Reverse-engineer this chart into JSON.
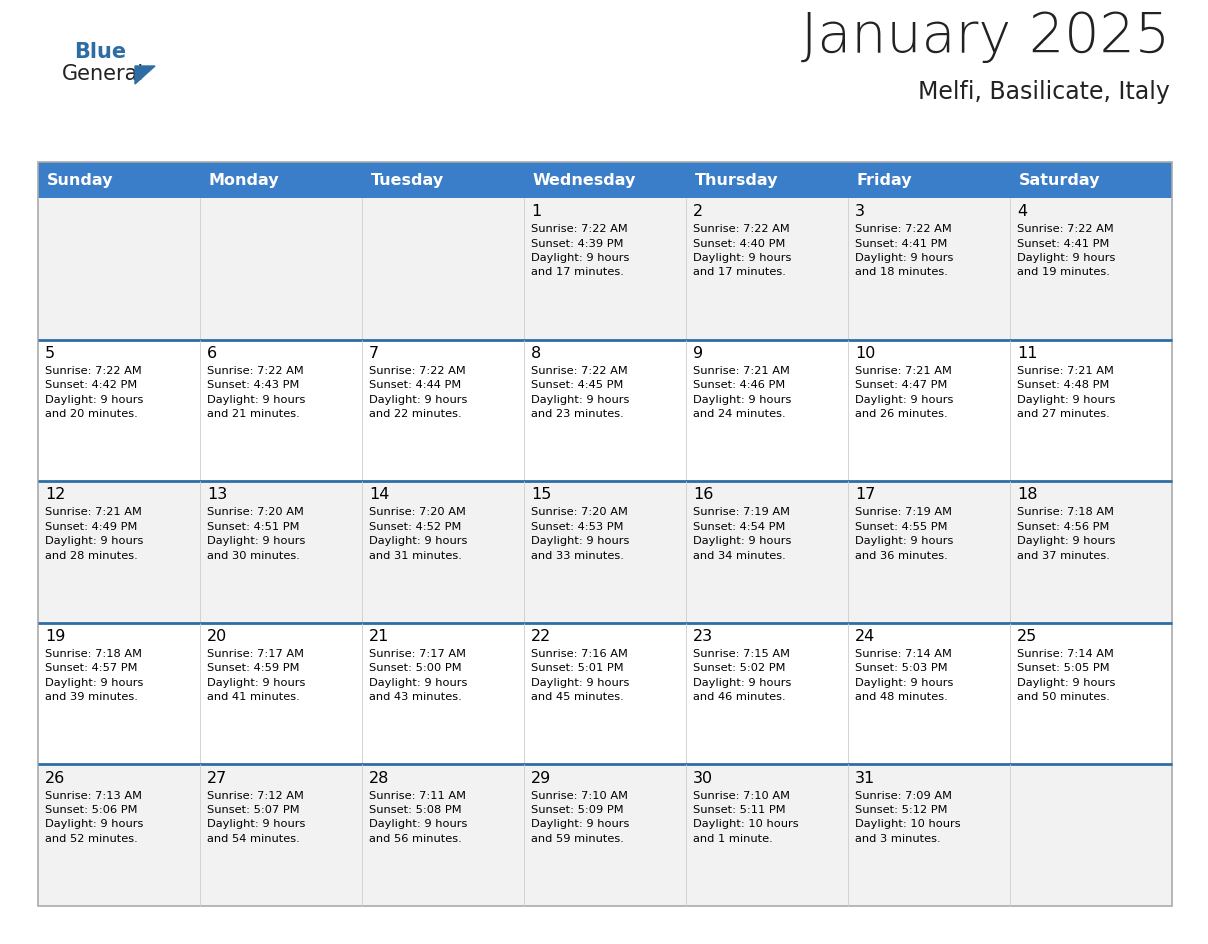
{
  "title": "January 2025",
  "subtitle": "Melfi, Basilicate, Italy",
  "days_of_week": [
    "Sunday",
    "Monday",
    "Tuesday",
    "Wednesday",
    "Thursday",
    "Friday",
    "Saturday"
  ],
  "header_bg": "#3A7DC9",
  "header_text": "#FFFFFF",
  "cell_bg_odd": "#F2F2F2",
  "cell_bg_even": "#FFFFFF",
  "divider_color": "#2E6DA4",
  "text_color": "#000000",
  "title_color": "#222222",
  "logo_general_color": "#222222",
  "logo_blue_color": "#2E6DA4",
  "logo_triangle_color": "#2E6DA4",
  "calendar_data": [
    [
      {
        "day": null,
        "info": null
      },
      {
        "day": null,
        "info": null
      },
      {
        "day": null,
        "info": null
      },
      {
        "day": 1,
        "info": "Sunrise: 7:22 AM\nSunset: 4:39 PM\nDaylight: 9 hours\nand 17 minutes."
      },
      {
        "day": 2,
        "info": "Sunrise: 7:22 AM\nSunset: 4:40 PM\nDaylight: 9 hours\nand 17 minutes."
      },
      {
        "day": 3,
        "info": "Sunrise: 7:22 AM\nSunset: 4:41 PM\nDaylight: 9 hours\nand 18 minutes."
      },
      {
        "day": 4,
        "info": "Sunrise: 7:22 AM\nSunset: 4:41 PM\nDaylight: 9 hours\nand 19 minutes."
      }
    ],
    [
      {
        "day": 5,
        "info": "Sunrise: 7:22 AM\nSunset: 4:42 PM\nDaylight: 9 hours\nand 20 minutes."
      },
      {
        "day": 6,
        "info": "Sunrise: 7:22 AM\nSunset: 4:43 PM\nDaylight: 9 hours\nand 21 minutes."
      },
      {
        "day": 7,
        "info": "Sunrise: 7:22 AM\nSunset: 4:44 PM\nDaylight: 9 hours\nand 22 minutes."
      },
      {
        "day": 8,
        "info": "Sunrise: 7:22 AM\nSunset: 4:45 PM\nDaylight: 9 hours\nand 23 minutes."
      },
      {
        "day": 9,
        "info": "Sunrise: 7:21 AM\nSunset: 4:46 PM\nDaylight: 9 hours\nand 24 minutes."
      },
      {
        "day": 10,
        "info": "Sunrise: 7:21 AM\nSunset: 4:47 PM\nDaylight: 9 hours\nand 26 minutes."
      },
      {
        "day": 11,
        "info": "Sunrise: 7:21 AM\nSunset: 4:48 PM\nDaylight: 9 hours\nand 27 minutes."
      }
    ],
    [
      {
        "day": 12,
        "info": "Sunrise: 7:21 AM\nSunset: 4:49 PM\nDaylight: 9 hours\nand 28 minutes."
      },
      {
        "day": 13,
        "info": "Sunrise: 7:20 AM\nSunset: 4:51 PM\nDaylight: 9 hours\nand 30 minutes."
      },
      {
        "day": 14,
        "info": "Sunrise: 7:20 AM\nSunset: 4:52 PM\nDaylight: 9 hours\nand 31 minutes."
      },
      {
        "day": 15,
        "info": "Sunrise: 7:20 AM\nSunset: 4:53 PM\nDaylight: 9 hours\nand 33 minutes."
      },
      {
        "day": 16,
        "info": "Sunrise: 7:19 AM\nSunset: 4:54 PM\nDaylight: 9 hours\nand 34 minutes."
      },
      {
        "day": 17,
        "info": "Sunrise: 7:19 AM\nSunset: 4:55 PM\nDaylight: 9 hours\nand 36 minutes."
      },
      {
        "day": 18,
        "info": "Sunrise: 7:18 AM\nSunset: 4:56 PM\nDaylight: 9 hours\nand 37 minutes."
      }
    ],
    [
      {
        "day": 19,
        "info": "Sunrise: 7:18 AM\nSunset: 4:57 PM\nDaylight: 9 hours\nand 39 minutes."
      },
      {
        "day": 20,
        "info": "Sunrise: 7:17 AM\nSunset: 4:59 PM\nDaylight: 9 hours\nand 41 minutes."
      },
      {
        "day": 21,
        "info": "Sunrise: 7:17 AM\nSunset: 5:00 PM\nDaylight: 9 hours\nand 43 minutes."
      },
      {
        "day": 22,
        "info": "Sunrise: 7:16 AM\nSunset: 5:01 PM\nDaylight: 9 hours\nand 45 minutes."
      },
      {
        "day": 23,
        "info": "Sunrise: 7:15 AM\nSunset: 5:02 PM\nDaylight: 9 hours\nand 46 minutes."
      },
      {
        "day": 24,
        "info": "Sunrise: 7:14 AM\nSunset: 5:03 PM\nDaylight: 9 hours\nand 48 minutes."
      },
      {
        "day": 25,
        "info": "Sunrise: 7:14 AM\nSunset: 5:05 PM\nDaylight: 9 hours\nand 50 minutes."
      }
    ],
    [
      {
        "day": 26,
        "info": "Sunrise: 7:13 AM\nSunset: 5:06 PM\nDaylight: 9 hours\nand 52 minutes."
      },
      {
        "day": 27,
        "info": "Sunrise: 7:12 AM\nSunset: 5:07 PM\nDaylight: 9 hours\nand 54 minutes."
      },
      {
        "day": 28,
        "info": "Sunrise: 7:11 AM\nSunset: 5:08 PM\nDaylight: 9 hours\nand 56 minutes."
      },
      {
        "day": 29,
        "info": "Sunrise: 7:10 AM\nSunset: 5:09 PM\nDaylight: 9 hours\nand 59 minutes."
      },
      {
        "day": 30,
        "info": "Sunrise: 7:10 AM\nSunset: 5:11 PM\nDaylight: 10 hours\nand 1 minute."
      },
      {
        "day": 31,
        "info": "Sunrise: 7:09 AM\nSunset: 5:12 PM\nDaylight: 10 hours\nand 3 minutes."
      },
      {
        "day": null,
        "info": null
      }
    ]
  ]
}
